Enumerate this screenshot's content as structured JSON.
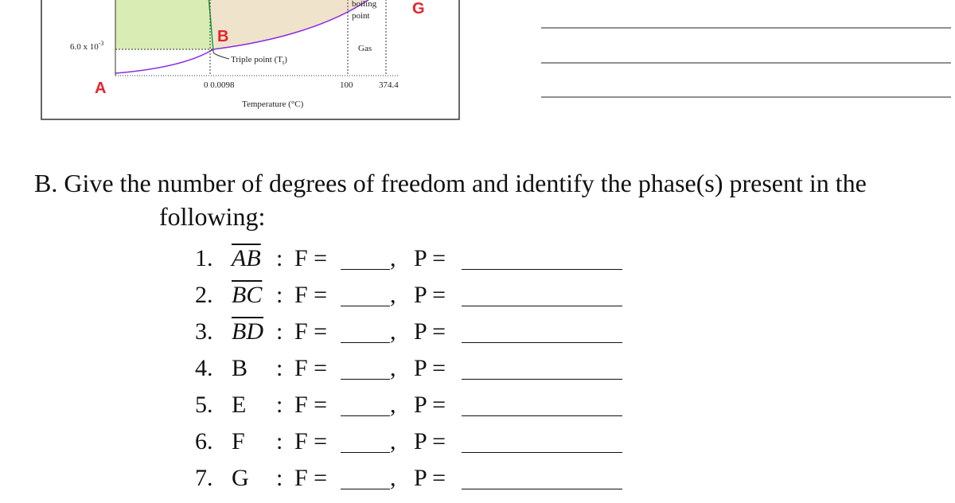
{
  "diagram": {
    "y_label_base": "6.0 x 10",
    "y_label_exp": "-3",
    "boiling": [
      "boiling",
      "point"
    ],
    "gas": "Gas",
    "triple": [
      "Triple point (T",
      "t",
      ")"
    ],
    "x_labels": [
      "0 0.0098",
      "100",
      "374.4"
    ],
    "x_title": "Temperature (°C)",
    "points": {
      "a": "A",
      "b": "B",
      "g": "G"
    }
  },
  "question": {
    "heading": "B. Give the number of degrees of freedom and identify the phase(s) present in the",
    "continuation": "following:",
    "colon": ":",
    "comma": ",",
    "f_label": "F =",
    "p_label": "P =",
    "items": [
      {
        "number": "1.",
        "label": "AB",
        "segment": true
      },
      {
        "number": "2.",
        "label": "BC",
        "segment": true
      },
      {
        "number": "3.",
        "label": "BD",
        "segment": true
      },
      {
        "number": "4.",
        "label": "B",
        "segment": false
      },
      {
        "number": "5.",
        "label": "E",
        "segment": false
      },
      {
        "number": "6.",
        "label": "F",
        "segment": false
      },
      {
        "number": "7.",
        "label": "G",
        "segment": false
      }
    ]
  }
}
